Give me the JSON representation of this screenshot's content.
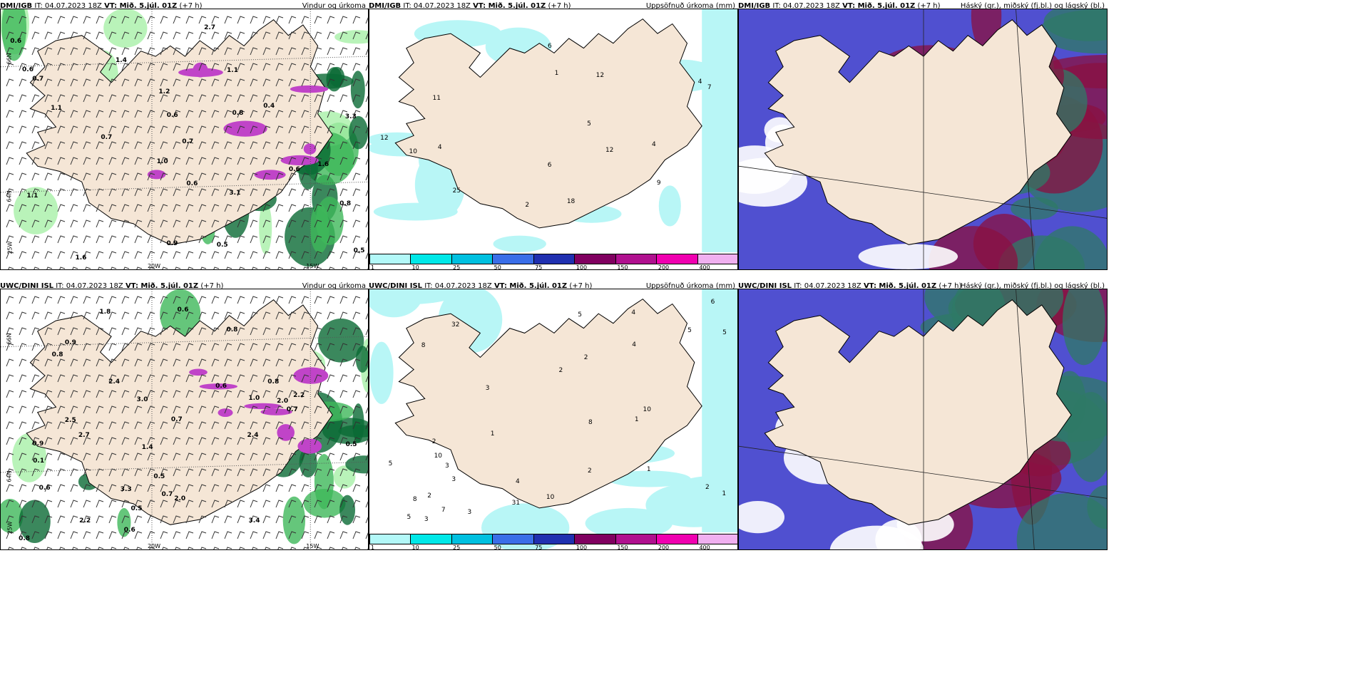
{
  "panels": [
    {
      "model": "DMI/IGB",
      "it_label": "IT:",
      "it": "04.07.2023 18Z",
      "vt": "VT: Mið. 5.júl. 01Z",
      "lead": "(+7 h)",
      "title": "Vindur og úrkoma",
      "lat1": "66N",
      "lat2": "64N",
      "lat3": "25W",
      "lon1": "20W",
      "lon2": "15W",
      "type": "wind"
    },
    {
      "model": "DMI/IGB",
      "it_label": "IT:",
      "it": "04.07.2023 18Z",
      "vt": "VT: Mið. 5.júl. 01Z",
      "lead": "(+7 h)",
      "title": "Uppsöfnuð úrkoma (mm)",
      "type": "accum"
    },
    {
      "model": "DMI/IGB",
      "it_label": "IT:",
      "it": "04.07.2023 18Z",
      "vt": "VT: Mið. 5.júl. 01Z",
      "lead": "(+7 h)",
      "title": "Háský (gr.), miðský (fj.bl.) og lágský (bl.)",
      "type": "cloud"
    },
    {
      "model": "UWC/DINI ISL",
      "it_label": "IT:",
      "it": "04.07.2023 18Z",
      "vt": "VT: Mið. 5.júl. 01Z",
      "lead": "(+7 h)",
      "title": "Vindur og úrkoma",
      "lat1": "66N",
      "lat2": "64N",
      "lat3": "25W",
      "lon1": "20W",
      "lon2": "15W",
      "type": "wind"
    },
    {
      "model": "UWC/DINI ISL",
      "it_label": "IT:",
      "it": "04.07.2023 18Z",
      "vt": "VT: Mið. 5.júl. 01Z",
      "lead": "(+7 h)",
      "title": "Uppsöfnuð úrkoma (mm)",
      "type": "accum"
    },
    {
      "model": "UWC/DINI ISL",
      "it_label": "IT:",
      "it": "04.07.2023 18Z",
      "vt": "VT: Mið. 5.júl. 01Z",
      "lead": "(+7 h)",
      "title": "Háský (gr.), miðský (fj.bl.) og lágský (bl.)",
      "type": "cloud"
    }
  ],
  "colorbar": {
    "labels": [
      "1",
      "10",
      "25",
      "50",
      "75",
      "100",
      "150",
      "200",
      "400"
    ],
    "colors": [
      "#b3f8f8",
      "#00e8e8",
      "#00c0e0",
      "#3a6ee8",
      "#2030b0",
      "#800060",
      "#b0108f",
      "#f000b0",
      "#f0b0f0"
    ]
  },
  "wind_values_top": [
    "1.1",
    "0.7",
    "1.2",
    "3.1",
    "0.9",
    "0.8",
    "0.6",
    "0.6",
    "0.7",
    "3.3",
    "0.6",
    "0.6",
    "0.6",
    "0.7",
    "1.6",
    "0.5",
    "1.1",
    "0.8",
    "0.4",
    "1.0",
    "2.7",
    "1.6",
    "0.5",
    "1.1",
    "1.4"
  ],
  "accum_values_top": [
    "1",
    "12",
    "11",
    "25",
    "18",
    "6",
    "9",
    "10",
    "4",
    "5",
    "12",
    "4",
    "7",
    "6",
    "2",
    "4",
    "12"
  ],
  "wind_values_bot": [
    "0.9",
    "2.4",
    "3.4",
    "2.0",
    "3.3",
    "2.2",
    "0.7",
    "0.8",
    "0.6",
    "0.6",
    "0.8",
    "2.7",
    "2.5",
    "3.0",
    "0.5",
    "0.9",
    "2.0",
    "1.4",
    "2.2",
    "2.4",
    "0.8",
    "0.7",
    "0.6",
    "0.5",
    "0.7",
    "0.8",
    "0.6",
    "0.1",
    "1.8",
    "0.5",
    "1.0"
  ],
  "accum_values_bot": [
    "2",
    "4",
    "2",
    "5",
    "5",
    "5",
    "3",
    "1",
    "6",
    "7",
    "8",
    "8",
    "31",
    "32",
    "4",
    "3",
    "2",
    "8",
    "10",
    "4",
    "5",
    "2",
    "3",
    "10",
    "5",
    "3",
    "10",
    "3",
    "1",
    "2",
    "1",
    "1",
    "2"
  ],
  "colors": {
    "land": "#f5e6d6",
    "sea": "#ffffff",
    "precip_light": "#a8f0a8",
    "precip_mid": "#3fb85a",
    "precip_dark": "#0a6a34",
    "snow": "#c044c8",
    "accum": "#b8f6f6",
    "cloud_blue": "#5a5ad8",
    "cloud_green": "#2f7a66",
    "cloud_red": "#8a1040"
  }
}
